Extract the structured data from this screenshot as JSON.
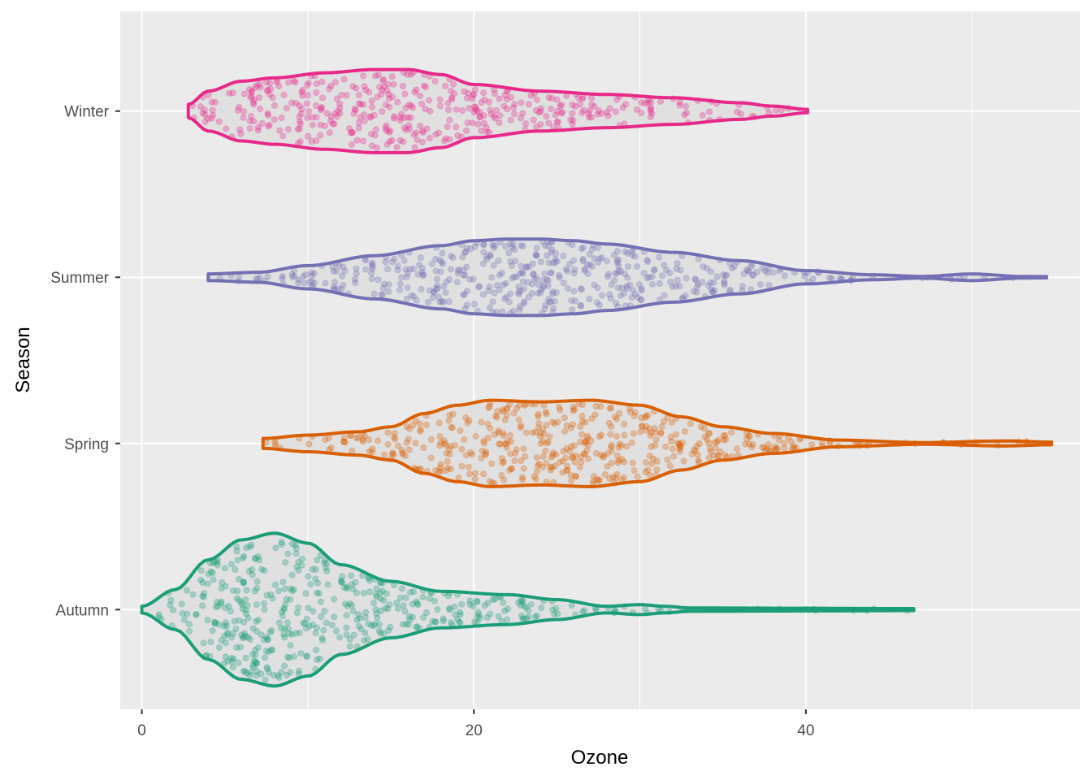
{
  "chart_data": {
    "type": "violin",
    "orientation": "horizontal",
    "xlabel": "Ozone",
    "ylabel": "Season",
    "xlim": [
      -1.3,
      56.5
    ],
    "x_ticks": [
      0,
      20,
      40
    ],
    "x_minor_ticks": [
      10,
      30,
      50
    ],
    "grid": true,
    "legend": "none",
    "panel_background": "#ebebeb",
    "violin_fill": "#e0e0e0",
    "point_opacity": 0.3,
    "series": [
      {
        "category": "Autumn",
        "color": "#1b9e77",
        "range": [
          0,
          46.5
        ],
        "n_points": 480,
        "half_width_profile": [
          [
            0,
            0.02
          ],
          [
            2,
            0.12
          ],
          [
            4,
            0.3
          ],
          [
            6,
            0.42
          ],
          [
            8,
            0.46
          ],
          [
            10,
            0.4
          ],
          [
            12,
            0.27
          ],
          [
            15,
            0.17
          ],
          [
            18,
            0.11
          ],
          [
            22,
            0.09
          ],
          [
            25,
            0.06
          ],
          [
            28,
            0.02
          ],
          [
            30,
            0.03
          ],
          [
            31.5,
            0.02
          ],
          [
            33,
            0.01
          ],
          [
            40,
            0.008
          ],
          [
            46.5,
            0.006
          ]
        ]
      },
      {
        "category": "Spring",
        "color": "#d95f02",
        "range": [
          7.3,
          54.8
        ],
        "n_points": 480,
        "half_width_profile": [
          [
            7.3,
            0.03
          ],
          [
            10,
            0.05
          ],
          [
            13,
            0.07
          ],
          [
            15,
            0.1
          ],
          [
            17,
            0.18
          ],
          [
            19,
            0.23
          ],
          [
            21,
            0.26
          ],
          [
            24,
            0.25
          ],
          [
            27,
            0.26
          ],
          [
            30,
            0.23
          ],
          [
            32.5,
            0.16
          ],
          [
            35,
            0.1
          ],
          [
            38,
            0.06
          ],
          [
            42,
            0.02
          ],
          [
            47,
            0.005
          ],
          [
            52,
            0.015
          ],
          [
            54.8,
            0.008
          ]
        ]
      },
      {
        "category": "Summer",
        "color": "#7570b3",
        "range": [
          4,
          54.5
        ],
        "n_points": 480,
        "half_width_profile": [
          [
            4,
            0.02
          ],
          [
            7,
            0.03
          ],
          [
            10,
            0.07
          ],
          [
            14,
            0.13
          ],
          [
            18,
            0.19
          ],
          [
            20,
            0.22
          ],
          [
            22,
            0.23
          ],
          [
            24,
            0.23
          ],
          [
            26,
            0.22
          ],
          [
            28,
            0.2
          ],
          [
            32,
            0.15
          ],
          [
            36,
            0.1
          ],
          [
            40,
            0.04
          ],
          [
            44,
            0.015
          ],
          [
            47,
            0.005
          ],
          [
            50,
            0.02
          ],
          [
            53,
            0.005
          ],
          [
            54.5,
            0.004
          ]
        ]
      },
      {
        "category": "Winter",
        "color": "#e7298a",
        "range": [
          2.8,
          40.1
        ],
        "n_points": 420,
        "half_width_profile": [
          [
            2.8,
            0.04
          ],
          [
            4,
            0.12
          ],
          [
            6,
            0.18
          ],
          [
            8,
            0.2
          ],
          [
            11,
            0.23
          ],
          [
            14,
            0.25
          ],
          [
            16,
            0.25
          ],
          [
            18,
            0.22
          ],
          [
            20,
            0.16
          ],
          [
            24,
            0.12
          ],
          [
            28,
            0.1
          ],
          [
            32,
            0.08
          ],
          [
            36,
            0.05
          ],
          [
            38,
            0.03
          ],
          [
            40.1,
            0.01
          ]
        ]
      }
    ]
  }
}
